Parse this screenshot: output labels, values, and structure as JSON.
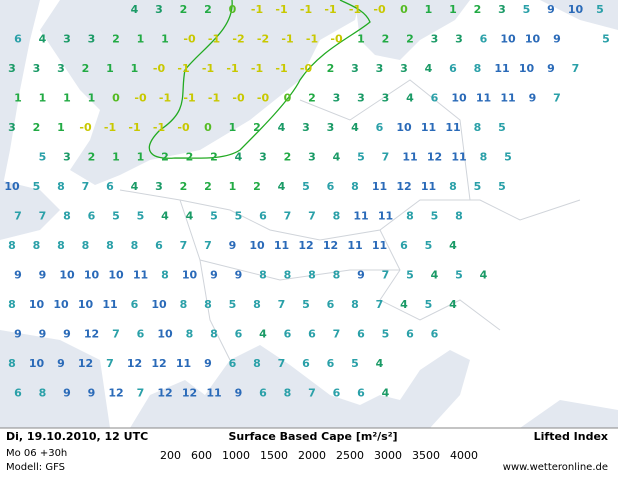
{
  "footer": {
    "date": "Di, 19.10.2010, 12 UTC",
    "run": "Mo 06 +30h",
    "model": "Modell: GFS",
    "cape_title": "Surface Based Cape [m²/s²]",
    "index_title": "Lifted Index",
    "source": "www.wetteronline.de"
  },
  "legend": [
    {
      "label": "200",
      "color": "#22bb22"
    },
    {
      "label": "600",
      "color": "#99cc22"
    },
    {
      "label": "1000",
      "color": "#cccc00"
    },
    {
      "label": "1500",
      "color": "#e0b020"
    },
    {
      "label": "2000",
      "color": "#e08820"
    },
    {
      "label": "2500",
      "color": "#cc2222"
    },
    {
      "label": "3000",
      "color": "#aa22aa"
    },
    {
      "label": "3500",
      "color": "#8822aa"
    },
    {
      "label": "4000",
      "color": "#8822cc"
    }
  ],
  "grid": [
    [
      null,
      null,
      null,
      null,
      null,
      "4",
      "3",
      "2",
      "2",
      "0",
      "-1",
      "-1",
      "-1",
      "-1",
      "-1",
      "-0",
      "0",
      "1",
      "1",
      "2",
      "3",
      "5",
      "9",
      "10",
      "5"
    ],
    [
      "6",
      "4",
      "3",
      "3",
      "2",
      "1",
      "1",
      "-0",
      "-1",
      "-2",
      "-2",
      "-1",
      "-1",
      "-0",
      "1",
      "2",
      "2",
      "3",
      "3",
      "6",
      "10",
      "10",
      "9",
      null,
      "5"
    ],
    [
      "3",
      "3",
      "3",
      "2",
      "1",
      "1",
      "-0",
      "-1",
      "-1",
      "-1",
      "-1",
      "-1",
      "-0",
      "2",
      "3",
      "3",
      "3",
      "4",
      "6",
      "8",
      "11",
      "10",
      "9",
      "7",
      null
    ],
    [
      "1",
      "1",
      "1",
      "1",
      "0",
      "-0",
      "-1",
      "-1",
      "-1",
      "-0",
      "-0",
      "0",
      "2",
      "3",
      "3",
      "3",
      "4",
      "6",
      "10",
      "11",
      "11",
      "9",
      "7",
      null,
      null
    ],
    [
      "3",
      "2",
      "1",
      "-0",
      "-1",
      "-1",
      "-1",
      "-0",
      "0",
      "1",
      "2",
      "4",
      "3",
      "3",
      "4",
      "6",
      "10",
      "11",
      "11",
      "8",
      "5",
      null,
      null,
      null,
      null
    ],
    [
      null,
      "5",
      "3",
      "2",
      "1",
      "1",
      "2",
      "2",
      "2",
      "4",
      "3",
      "2",
      "3",
      "4",
      "5",
      "7",
      "11",
      "12",
      "11",
      "8",
      "5",
      null,
      null,
      null,
      null
    ],
    [
      "10",
      "5",
      "8",
      "7",
      "6",
      "4",
      "3",
      "2",
      "2",
      "1",
      "2",
      "4",
      "5",
      "6",
      "8",
      "11",
      "12",
      "11",
      "8",
      "5",
      "5",
      null,
      null,
      null,
      null
    ],
    [
      "7",
      "7",
      "8",
      "6",
      "5",
      "5",
      "4",
      "4",
      "5",
      "5",
      "6",
      "7",
      "7",
      "8",
      "11",
      "11",
      "8",
      "5",
      "8",
      null,
      null,
      null,
      null,
      null,
      null
    ],
    [
      "8",
      "8",
      "8",
      "8",
      "8",
      "8",
      "6",
      "7",
      "7",
      "9",
      "10",
      "11",
      "12",
      "12",
      "11",
      "11",
      "6",
      "5",
      "4",
      null,
      null,
      null,
      null,
      null,
      null
    ],
    [
      "9",
      "9",
      "10",
      "10",
      "10",
      "11",
      "8",
      "10",
      "9",
      "9",
      "8",
      "8",
      "8",
      "8",
      "9",
      "7",
      "5",
      "4",
      "5",
      "4",
      null,
      null,
      null,
      null,
      null
    ],
    [
      "8",
      "10",
      "10",
      "10",
      "11",
      "6",
      "10",
      "8",
      "8",
      "5",
      "8",
      "7",
      "5",
      "6",
      "8",
      "7",
      "4",
      "5",
      "4",
      null,
      null,
      null,
      null,
      null,
      null
    ],
    [
      "9",
      "9",
      "9",
      "12",
      "7",
      "6",
      "10",
      "8",
      "8",
      "6",
      "4",
      "6",
      "6",
      "7",
      "6",
      "5",
      "6",
      "6",
      null,
      null,
      null,
      null,
      null,
      null,
      null
    ],
    [
      "8",
      "10",
      "9",
      "12",
      "7",
      "12",
      "12",
      "11",
      "9",
      "6",
      "8",
      "7",
      "6",
      "6",
      "5",
      "4",
      null,
      null,
      null,
      null,
      null,
      null,
      null,
      null,
      null
    ],
    [
      "6",
      "8",
      "9",
      "9",
      "12",
      "7",
      "12",
      "12",
      "11",
      "9",
      "6",
      "8",
      "7",
      "6",
      "6",
      "4",
      null,
      null,
      null,
      null,
      null,
      null,
      null,
      null,
      null
    ]
  ]
}
